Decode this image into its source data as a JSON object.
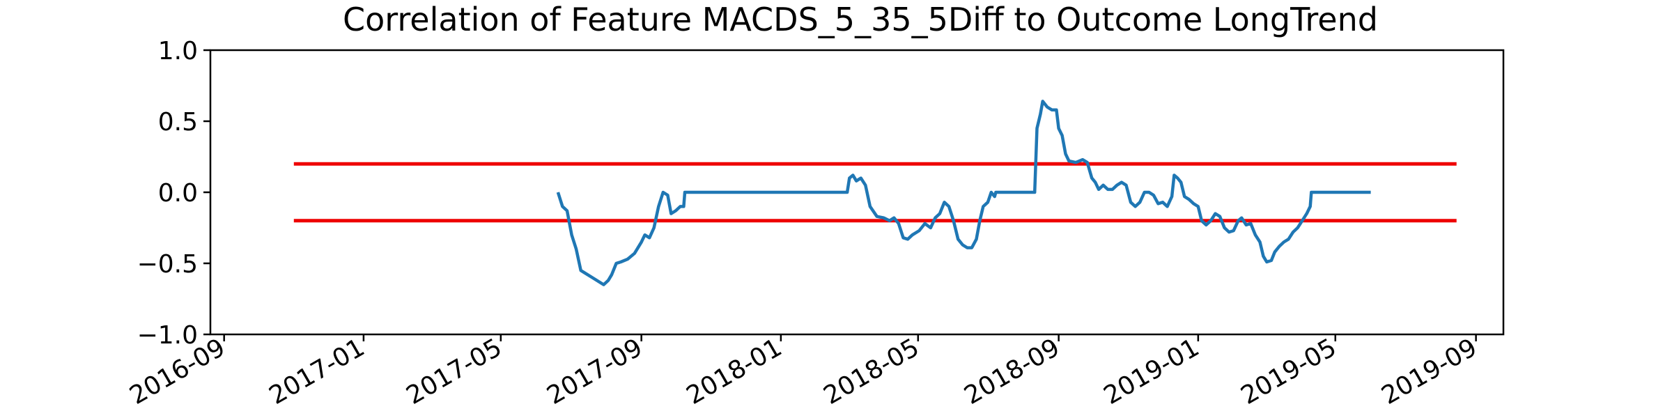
{
  "chart_data": {
    "type": "line",
    "title": "Correlation of Feature MACDS_5_35_5Diff to Outcome LongTrend",
    "xlabel": "",
    "ylabel": "",
    "ylim": [
      -1.0,
      1.0
    ],
    "xlim": [
      "2016-08-20",
      "2019-09-25"
    ],
    "x_ticks": [
      "2016-09",
      "2017-01",
      "2017-05",
      "2017-09",
      "2018-01",
      "2018-05",
      "2018-09",
      "2019-01",
      "2019-05",
      "2019-09"
    ],
    "y_ticks": [
      "1.0",
      "0.5",
      "0.0",
      "−0.5",
      "−1.0"
    ],
    "y_tick_values": [
      1.0,
      0.5,
      0.0,
      -0.5,
      -1.0
    ],
    "grid": false,
    "legend": "none",
    "thresholds": [
      {
        "y": 0.2,
        "x_start": "2016-11-01",
        "x_end": "2019-08-15",
        "color": "#ee0000"
      },
      {
        "y": -0.2,
        "x_start": "2016-11-01",
        "x_end": "2019-08-15",
        "color": "#ee0000"
      }
    ],
    "series": [
      {
        "color": "#1f77b4",
        "points": [
          [
            "2017-06-20",
            0.0
          ],
          [
            "2017-06-24",
            -0.1
          ],
          [
            "2017-06-28",
            -0.13
          ],
          [
            "2017-07-02",
            -0.3
          ],
          [
            "2017-07-06",
            -0.4
          ],
          [
            "2017-07-10",
            -0.55
          ],
          [
            "2017-07-14",
            -0.57
          ],
          [
            "2017-07-20",
            -0.6
          ],
          [
            "2017-07-26",
            -0.63
          ],
          [
            "2017-07-30",
            -0.65
          ],
          [
            "2017-08-03",
            -0.62
          ],
          [
            "2017-08-06",
            -0.58
          ],
          [
            "2017-08-10",
            -0.5
          ],
          [
            "2017-08-14",
            -0.49
          ],
          [
            "2017-08-20",
            -0.47
          ],
          [
            "2017-08-26",
            -0.43
          ],
          [
            "2017-09-01",
            -0.35
          ],
          [
            "2017-09-04",
            -0.3
          ],
          [
            "2017-09-08",
            -0.32
          ],
          [
            "2017-09-12",
            -0.25
          ],
          [
            "2017-09-16",
            -0.1
          ],
          [
            "2017-09-20",
            0.0
          ],
          [
            "2017-09-24",
            -0.02
          ],
          [
            "2017-09-27",
            -0.15
          ],
          [
            "2017-10-01",
            -0.13
          ],
          [
            "2017-10-05",
            -0.1
          ],
          [
            "2017-10-08",
            -0.1
          ],
          [
            "2017-10-09",
            0.0
          ],
          [
            "2018-02-28",
            0.0
          ],
          [
            "2018-03-02",
            0.1
          ],
          [
            "2018-03-05",
            0.12
          ],
          [
            "2018-03-08",
            0.08
          ],
          [
            "2018-03-12",
            0.1
          ],
          [
            "2018-03-16",
            0.05
          ],
          [
            "2018-03-20",
            -0.1
          ],
          [
            "2018-03-26",
            -0.17
          ],
          [
            "2018-04-01",
            -0.18
          ],
          [
            "2018-04-06",
            -0.2
          ],
          [
            "2018-04-10",
            -0.18
          ],
          [
            "2018-04-14",
            -0.22
          ],
          [
            "2018-04-18",
            -0.32
          ],
          [
            "2018-04-22",
            -0.33
          ],
          [
            "2018-04-26",
            -0.3
          ],
          [
            "2018-05-02",
            -0.27
          ],
          [
            "2018-05-07",
            -0.22
          ],
          [
            "2018-05-12",
            -0.25
          ],
          [
            "2018-05-16",
            -0.18
          ],
          [
            "2018-05-20",
            -0.15
          ],
          [
            "2018-05-24",
            -0.07
          ],
          [
            "2018-05-28",
            -0.1
          ],
          [
            "2018-06-01",
            -0.2
          ],
          [
            "2018-06-05",
            -0.33
          ],
          [
            "2018-06-09",
            -0.37
          ],
          [
            "2018-06-13",
            -0.39
          ],
          [
            "2018-06-17",
            -0.39
          ],
          [
            "2018-06-21",
            -0.33
          ],
          [
            "2018-06-24",
            -0.2
          ],
          [
            "2018-06-27",
            -0.1
          ],
          [
            "2018-07-01",
            -0.07
          ],
          [
            "2018-07-04",
            0.0
          ],
          [
            "2018-07-07",
            -0.03
          ],
          [
            "2018-07-08",
            0.0
          ],
          [
            "2018-08-11",
            0.0
          ],
          [
            "2018-08-13",
            0.45
          ],
          [
            "2018-08-16",
            0.55
          ],
          [
            "2018-08-18",
            0.64
          ],
          [
            "2018-08-22",
            0.6
          ],
          [
            "2018-08-26",
            0.58
          ],
          [
            "2018-08-30",
            0.58
          ],
          [
            "2018-09-01",
            0.45
          ],
          [
            "2018-09-04",
            0.4
          ],
          [
            "2018-09-07",
            0.27
          ],
          [
            "2018-09-10",
            0.22
          ],
          [
            "2018-09-16",
            0.21
          ],
          [
            "2018-09-22",
            0.23
          ],
          [
            "2018-09-26",
            0.21
          ],
          [
            "2018-09-30",
            0.1
          ],
          [
            "2018-10-03",
            0.07
          ],
          [
            "2018-10-06",
            0.02
          ],
          [
            "2018-10-10",
            0.05
          ],
          [
            "2018-10-14",
            0.02
          ],
          [
            "2018-10-18",
            0.02
          ],
          [
            "2018-10-22",
            0.05
          ],
          [
            "2018-10-26",
            0.07
          ],
          [
            "2018-10-30",
            0.05
          ],
          [
            "2018-11-03",
            -0.07
          ],
          [
            "2018-11-07",
            -0.1
          ],
          [
            "2018-11-11",
            -0.07
          ],
          [
            "2018-11-15",
            0.0
          ],
          [
            "2018-11-19",
            0.0
          ],
          [
            "2018-11-23",
            -0.02
          ],
          [
            "2018-11-27",
            -0.08
          ],
          [
            "2018-12-01",
            -0.07
          ],
          [
            "2018-12-05",
            -0.1
          ],
          [
            "2018-12-09",
            -0.03
          ],
          [
            "2018-12-11",
            0.12
          ],
          [
            "2018-12-14",
            0.1
          ],
          [
            "2018-12-17",
            0.07
          ],
          [
            "2018-12-20",
            -0.03
          ],
          [
            "2018-12-24",
            -0.05
          ],
          [
            "2018-12-28",
            -0.08
          ],
          [
            "2019-01-01",
            -0.1
          ],
          [
            "2019-01-04",
            -0.2
          ],
          [
            "2019-01-08",
            -0.23
          ],
          [
            "2019-01-12",
            -0.2
          ],
          [
            "2019-01-16",
            -0.15
          ],
          [
            "2019-01-20",
            -0.17
          ],
          [
            "2019-01-24",
            -0.25
          ],
          [
            "2019-01-28",
            -0.28
          ],
          [
            "2019-02-01",
            -0.27
          ],
          [
            "2019-02-05",
            -0.2
          ],
          [
            "2019-02-08",
            -0.18
          ],
          [
            "2019-02-12",
            -0.23
          ],
          [
            "2019-02-16",
            -0.22
          ],
          [
            "2019-02-20",
            -0.3
          ],
          [
            "2019-02-24",
            -0.35
          ],
          [
            "2019-02-27",
            -0.45
          ],
          [
            "2019-03-02",
            -0.49
          ],
          [
            "2019-03-06",
            -0.48
          ],
          [
            "2019-03-09",
            -0.42
          ],
          [
            "2019-03-13",
            -0.38
          ],
          [
            "2019-03-17",
            -0.35
          ],
          [
            "2019-03-21",
            -0.33
          ],
          [
            "2019-03-25",
            -0.28
          ],
          [
            "2019-03-29",
            -0.25
          ],
          [
            "2019-04-02",
            -0.2
          ],
          [
            "2019-04-06",
            -0.15
          ],
          [
            "2019-04-09",
            -0.1
          ],
          [
            "2019-04-10",
            0.0
          ],
          [
            "2019-06-01",
            0.0
          ]
        ]
      }
    ]
  }
}
